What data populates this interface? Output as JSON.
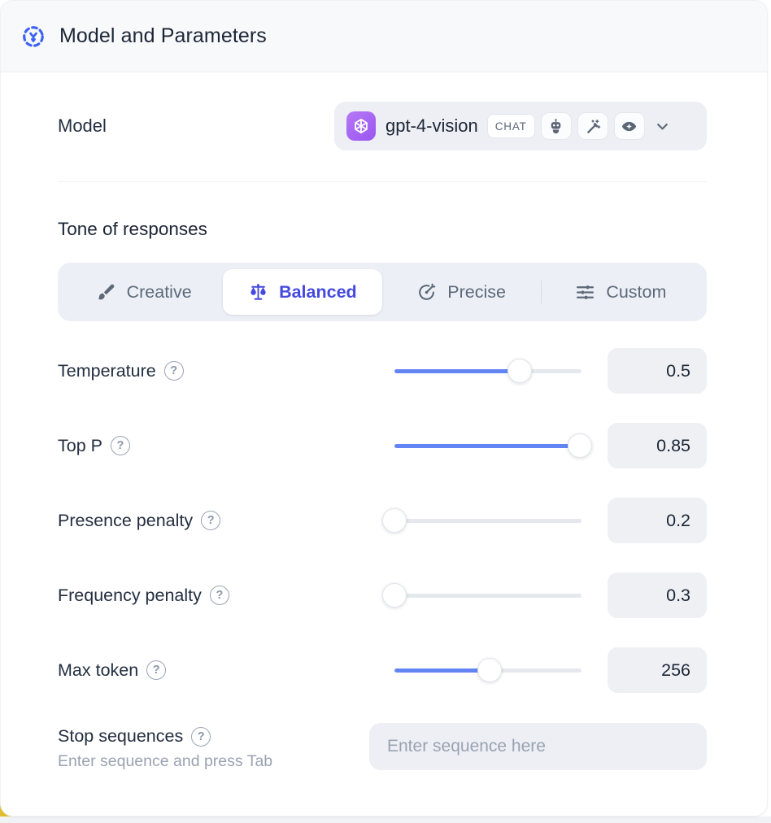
{
  "header": {
    "title": "Model and Parameters"
  },
  "model": {
    "label": "Model",
    "selected_model": "gpt-4-vision",
    "type_badge": "CHAT",
    "capabilities": [
      "assistant",
      "magic-wand",
      "vision"
    ]
  },
  "tone": {
    "title": "Tone of responses",
    "tabs": [
      {
        "label": "Creative",
        "icon": "brush-icon",
        "selected": false
      },
      {
        "label": "Balanced",
        "icon": "scales-icon",
        "selected": true
      },
      {
        "label": "Precise",
        "icon": "target-icon",
        "selected": false
      },
      {
        "label": "Custom",
        "icon": "sliders-icon",
        "selected": false
      }
    ]
  },
  "parameters": [
    {
      "label": "Temperature",
      "value": "0.5",
      "slider_pct": 67
    },
    {
      "label": "Top P",
      "value": "0.85",
      "slider_pct": 99
    },
    {
      "label": "Presence penalty",
      "value": "0.2",
      "slider_pct": 0
    },
    {
      "label": "Frequency penalty",
      "value": "0.3",
      "slider_pct": 0
    },
    {
      "label": "Max token",
      "value": "256",
      "slider_pct": 51
    }
  ],
  "stop_sequences": {
    "label": "Stop sequences",
    "helper": "Enter sequence and press Tab",
    "placeholder": "Enter sequence here"
  },
  "icons": {
    "help": "?"
  },
  "colors": {
    "accent_blue": "#6385f4",
    "selected_indigo": "#4549e0",
    "header_icon_blue": "#3d63f5",
    "openai_tile_purple": "#a463f2",
    "field_gray": "#eef0f4",
    "tab_bar_gray": "#edeff6",
    "label_dark": "#232e40",
    "muted_gray": "#9aa3b2",
    "background_accent_yellow": "#e2bf2e"
  }
}
